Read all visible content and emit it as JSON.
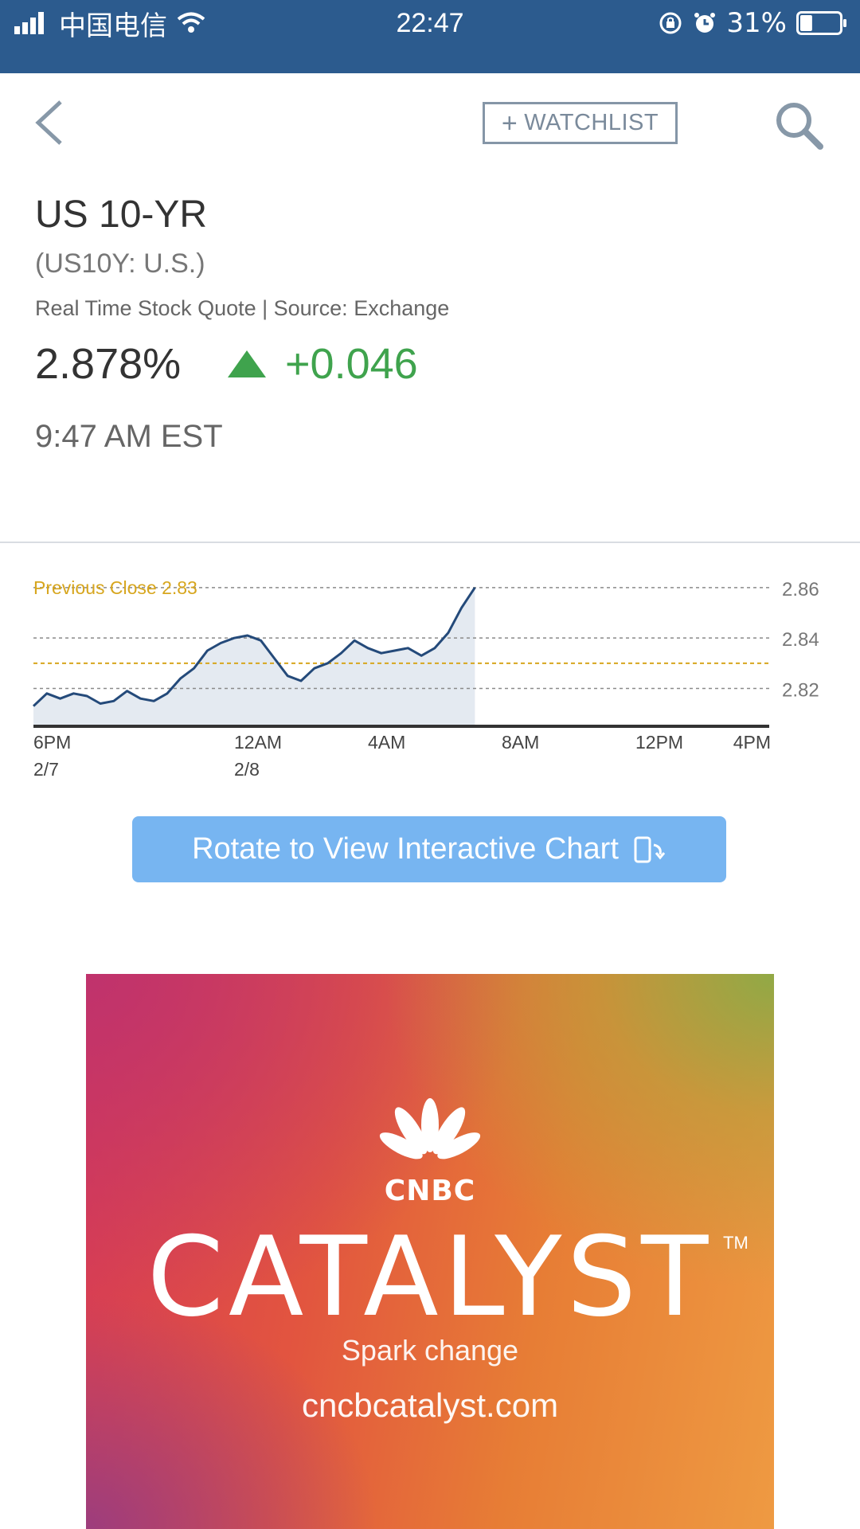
{
  "status_bar": {
    "carrier": "中国电信",
    "time": "22:47",
    "battery": "31%",
    "battery_level": 0.31
  },
  "nav": {
    "watchlist_label": "WATCHLIST",
    "watchlist_plus": "+"
  },
  "quote": {
    "name": "US 10-YR",
    "symbol": "(US10Y: U.S.)",
    "source": "Real Time Stock Quote | Source: Exchange",
    "price": "2.878%",
    "change": "+0.046",
    "time": "9:47 AM EST"
  },
  "colors": {
    "status_bar": "#2c5b8e",
    "positive": "#3fa34d",
    "previous_close": "#d7a61e",
    "line": "#244a7a",
    "button": "#77b5f1"
  },
  "chart_data": {
    "type": "area",
    "previous_close_label": "Previous Close 2.83",
    "previous_close": 2.83,
    "y_ticks": [
      "2.86",
      "2.84",
      "2.82"
    ],
    "ylim": [
      2.805,
      2.865
    ],
    "x_ticks": [
      {
        "label": "6PM",
        "sub": "2/7"
      },
      {
        "label": "12AM",
        "sub": "2/8"
      },
      {
        "label": "4AM",
        "sub": ""
      },
      {
        "label": "8AM",
        "sub": ""
      },
      {
        "label": "12PM",
        "sub": ""
      },
      {
        "label": "4PM",
        "sub": ""
      }
    ],
    "x_hours_range": [
      0,
      22
    ],
    "series": [
      {
        "x": [
          0,
          0.4,
          0.8,
          1.2,
          1.6,
          2.0,
          2.4,
          2.8,
          3.2,
          3.6,
          4.0,
          4.4,
          4.8,
          5.2,
          5.6,
          6.0,
          6.4,
          6.8,
          7.2,
          7.6,
          8.0,
          8.4,
          8.8,
          9.2,
          9.6,
          10.0,
          10.4,
          10.8,
          11.2,
          11.6,
          12.0,
          12.4,
          12.8,
          13.2
        ],
        "y": [
          2.813,
          2.818,
          2.816,
          2.818,
          2.817,
          2.814,
          2.815,
          2.819,
          2.816,
          2.815,
          2.818,
          2.824,
          2.828,
          2.835,
          2.838,
          2.84,
          2.841,
          2.839,
          2.832,
          2.825,
          2.823,
          2.828,
          2.83,
          2.834,
          2.839,
          2.836,
          2.834,
          2.835,
          2.836,
          2.833,
          2.836,
          2.842,
          2.852,
          2.86
        ]
      }
    ]
  },
  "rotate_button": {
    "label": "Rotate to View Interactive Chart"
  },
  "ad": {
    "brand": "CNBC",
    "title": "CATALYST",
    "trademark": "TM",
    "tagline": "Spark change",
    "url": "cncbcatalyst.com"
  }
}
